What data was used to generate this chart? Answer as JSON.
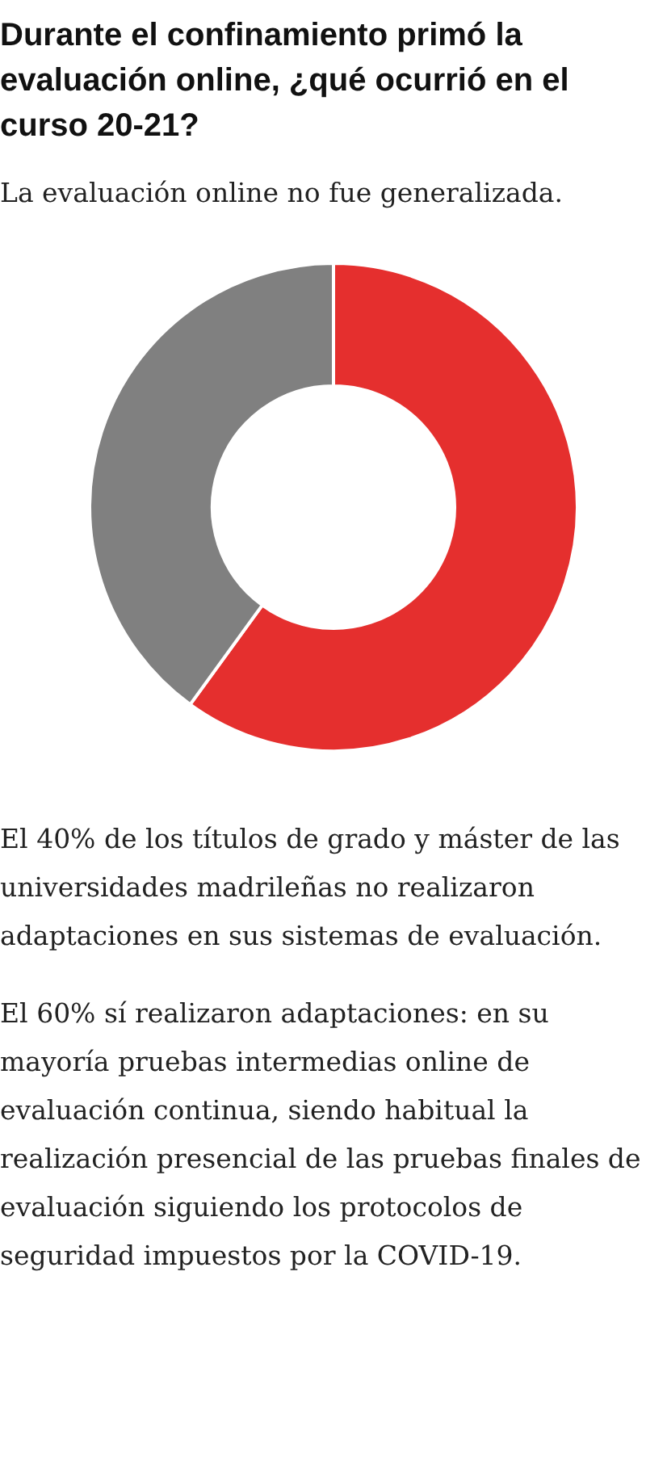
{
  "chart_data": {
    "type": "donut",
    "title": "Durante el confinamiento primó la evaluación online, ¿qué ocurrió en el curso 20-21?",
    "subtitle": "La evaluación online no fue generalizada.",
    "categories": [
      null,
      null
    ],
    "values": [
      60,
      40
    ],
    "colors": [
      "#e52f2e",
      "#808080"
    ],
    "legend": false,
    "annotations": [
      "El 40% de los títulos de grado y máster de las universidades madrileñas no realizaron adaptaciones en sus sistemas de evaluación.",
      "El 60% sí realizaron adaptaciones: en su mayoría pruebas intermedias online de evaluación continua, siendo habitual la realización presencial de las pruebas finales de evaluación siguiendo los protocolos de seguridad impuestos por la COVID-19."
    ]
  }
}
